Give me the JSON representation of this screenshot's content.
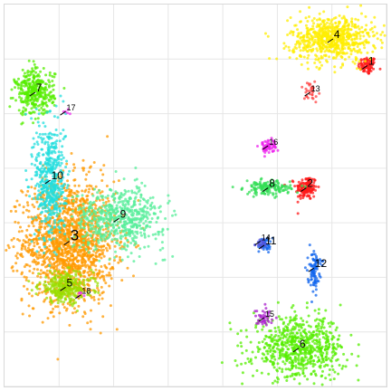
{
  "chart_data": {
    "type": "scatter",
    "title": "",
    "xlabel": "",
    "ylabel": "",
    "xlim": [
      0,
      100
    ],
    "ylim": [
      0,
      100
    ],
    "grid": true,
    "legend": "none",
    "note": "Unitless embedding scatter; cluster centers and spreads estimated in 0-100 plot-area data units.",
    "clusters": [
      {
        "label": "1",
        "color": "#ff1a1a",
        "center": [
          95,
          84
        ],
        "spread": [
          1.2,
          1.2
        ],
        "n": 80
      },
      {
        "label": "2",
        "color": "#ff1a1a",
        "center": [
          79,
          52
        ],
        "spread": [
          1.4,
          1.6
        ],
        "n": 140
      },
      {
        "label": "3",
        "color": "#ff9900",
        "center": [
          17,
          38
        ],
        "spread": [
          6.0,
          8.0
        ],
        "n": 1600
      },
      {
        "label": "4",
        "color": "#ffee00",
        "center": [
          86,
          91
        ],
        "spread": [
          5.5,
          3.0
        ],
        "n": 700
      },
      {
        "label": "5",
        "color": "#99dd00",
        "center": [
          16,
          26
        ],
        "spread": [
          3.5,
          2.0
        ],
        "n": 300
      },
      {
        "label": "6",
        "color": "#55ee00",
        "center": [
          77,
          10
        ],
        "spread": [
          6.0,
          4.0
        ],
        "n": 700
      },
      {
        "label": "7",
        "color": "#55ee00",
        "center": [
          8,
          77
        ],
        "spread": [
          2.5,
          3.0
        ],
        "n": 350
      },
      {
        "label": "8",
        "color": "#33dd55",
        "center": [
          69,
          52
        ],
        "spread": [
          3.0,
          0.9
        ],
        "n": 160
      },
      {
        "label": "9",
        "color": "#55ee99",
        "center": [
          30,
          44
        ],
        "spread": [
          6.0,
          4.0
        ],
        "n": 600
      },
      {
        "label": "10",
        "color": "#22dddd",
        "center": [
          12,
          54
        ],
        "spread": [
          2.0,
          8.0
        ],
        "n": 500
      },
      {
        "label": "11",
        "color": "#1166ee",
        "center": [
          68,
          37
        ],
        "spread": [
          0.8,
          1.0
        ],
        "n": 40
      },
      {
        "label": "12",
        "color": "#1166ee",
        "center": [
          81,
          31
        ],
        "spread": [
          0.8,
          2.5
        ],
        "n": 90
      },
      {
        "label": "13",
        "color": "#ff4444",
        "center": [
          80,
          77
        ],
        "spread": [
          1.0,
          1.2
        ],
        "n": 30
      },
      {
        "label": "14",
        "color": "#5555dd",
        "center": [
          67,
          38
        ],
        "spread": [
          0.8,
          0.8
        ],
        "n": 20
      },
      {
        "label": "15",
        "color": "#aa22cc",
        "center": [
          68,
          18
        ],
        "spread": [
          1.2,
          1.2
        ],
        "n": 40
      },
      {
        "label": "16",
        "color": "#ee22ee",
        "center": [
          69,
          63
        ],
        "spread": [
          1.2,
          0.9
        ],
        "n": 60
      },
      {
        "label": "17",
        "color": "#ee33ee",
        "center": [
          16,
          72
        ],
        "spread": [
          0.5,
          0.5
        ],
        "n": 5
      },
      {
        "label": "18",
        "color": "#ee33ee",
        "center": [
          20,
          24
        ],
        "spread": [
          0.5,
          0.5
        ],
        "n": 5
      }
    ]
  }
}
